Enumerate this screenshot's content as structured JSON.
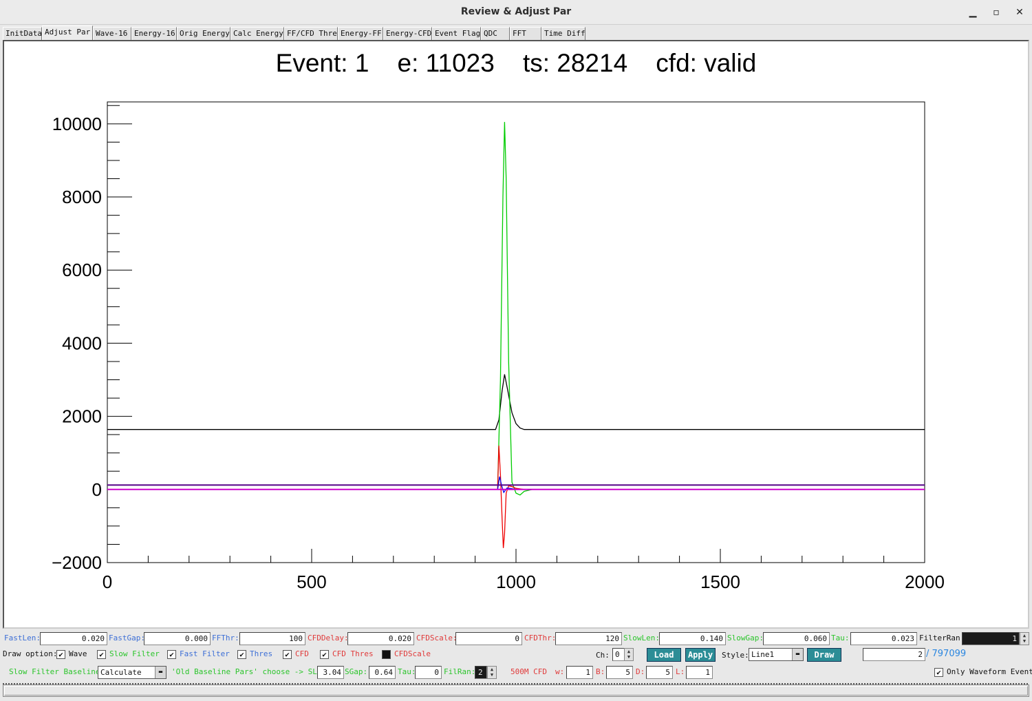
{
  "window": {
    "title": "Review & Adjust Par",
    "minimize": "▁",
    "maximize": "▫",
    "close": "✕"
  },
  "tabs": [
    {
      "label": "InitData",
      "active": false
    },
    {
      "label": "Adjust Par",
      "active": true
    },
    {
      "label": "Wave-16",
      "active": false
    },
    {
      "label": "Energy-16",
      "active": false
    },
    {
      "label": "Orig Energy",
      "active": false
    },
    {
      "label": "Calc Energy",
      "active": false
    },
    {
      "label": "FF/CFD Thre",
      "active": false
    },
    {
      "label": "Energy-FF",
      "active": false
    },
    {
      "label": "Energy-CFD",
      "active": false
    },
    {
      "label": "Event Flag",
      "active": false
    },
    {
      "label": "QDC",
      "active": false
    },
    {
      "label": "FFT",
      "active": false
    },
    {
      "label": "Time Diff",
      "active": false
    }
  ],
  "chart_data": {
    "type": "line",
    "title": "Event: 1    e: 11023    ts: 28214    cfd: valid",
    "xlim": [
      0,
      2000
    ],
    "ylim": [
      -2000,
      10600
    ],
    "xticks": [
      0,
      500,
      1000,
      1500,
      2000
    ],
    "yticks": [
      -2000,
      0,
      2000,
      4000,
      6000,
      8000,
      10000
    ],
    "xtick_labels": [
      "0",
      "500",
      "1000",
      "1500",
      "2000"
    ],
    "ytick_labels": [
      "−2000",
      "0",
      "2000",
      "4000",
      "6000",
      "8000",
      "10000"
    ],
    "grid": false,
    "series": [
      {
        "color": "#000000",
        "x": [
          0,
          950,
          958,
          966,
          972,
          980,
          990,
          1000,
          1010,
          1020,
          1040,
          2000
        ],
        "y": [
          1640,
          1640,
          1900,
          2700,
          3150,
          2700,
          2100,
          1800,
          1680,
          1640,
          1640,
          1640
        ]
      },
      {
        "color": "#00cc00",
        "x": [
          0,
          955,
          962,
          968,
          972,
          976,
          982,
          990,
          1000,
          1010,
          1020,
          1040,
          2000
        ],
        "y": [
          0,
          0,
          3000,
          8000,
          10050,
          8500,
          3500,
          200,
          -100,
          -150,
          -50,
          0,
          0
        ]
      },
      {
        "color": "#ee0000",
        "x": [
          0,
          955,
          958,
          962,
          966,
          969,
          972,
          976,
          982,
          990,
          1000,
          1020,
          2000
        ],
        "y": [
          0,
          0,
          1200,
          400,
          -800,
          -1600,
          -1200,
          -100,
          100,
          80,
          30,
          0,
          0
        ]
      },
      {
        "color": "#0000ee",
        "x": [
          0,
          955,
          960,
          965,
          970,
          978,
          990,
          1000,
          2000
        ],
        "y": [
          0,
          0,
          350,
          100,
          -80,
          40,
          20,
          0,
          0
        ]
      },
      {
        "color": "#cc00cc",
        "x": [
          0,
          2000
        ],
        "y": [
          0,
          0
        ]
      },
      {
        "color": "#550088",
        "x": [
          0,
          2000
        ],
        "y": [
          120,
          120
        ]
      }
    ]
  },
  "controls": {
    "row1": [
      {
        "label": "FastLen:",
        "color": "blue",
        "value": "0.020"
      },
      {
        "label": "FastGap:",
        "color": "blue",
        "value": "0.000"
      },
      {
        "label": "FFThr:",
        "color": "blue",
        "value": "100"
      },
      {
        "label": "CFDDelay:",
        "color": "red",
        "value": "0.020"
      },
      {
        "label": "CFDScale:",
        "color": "red",
        "value": "0"
      },
      {
        "label": "CFDThr:",
        "color": "red",
        "value": "120"
      },
      {
        "label": "SlowLen:",
        "color": "green",
        "value": "0.140"
      },
      {
        "label": "SlowGap:",
        "color": "green",
        "value": "0.060"
      },
      {
        "label": "Tau:",
        "color": "green",
        "value": "0.023"
      },
      {
        "label": "FilterRan:",
        "color": "black",
        "value": "1"
      }
    ],
    "draw_option_label": "Draw option:",
    "draw_options": [
      {
        "label": "Wave",
        "color": "black",
        "checked": true
      },
      {
        "label": "Slow Filter",
        "color": "green",
        "checked": true
      },
      {
        "label": "Fast Filter",
        "color": "blue",
        "checked": true
      },
      {
        "label": "Thres",
        "color": "blue",
        "checked": true
      },
      {
        "label": "CFD",
        "color": "red",
        "checked": true
      },
      {
        "label": "CFD Thres",
        "color": "red",
        "checked": true
      },
      {
        "label": "CFDScale",
        "color": "black",
        "checked": false
      }
    ],
    "ch_label": "Ch:",
    "ch_value": "0",
    "load_label": "Load",
    "apply_label": "Apply",
    "style_label": "Style:",
    "style_value": "Line1",
    "draw_label": "Draw",
    "event_value": "2",
    "event_total": "/ 797099",
    "row3": {
      "baseline_label": "Slow Filter Baseline:",
      "baseline_value": "Calculate",
      "old_pars_label": "'Old Baseline Pars' choose -> SLen:",
      "slen_value": "3.04",
      "sgap_label": "SGap:",
      "sgap_value": "0.64",
      "tau_label": "Tau:",
      "tau_value": "0",
      "filran_label": "FilRan:",
      "filran_value": "2",
      "ram_cfd_label": "500M CFD",
      "w_label": "w:",
      "w_value": "1",
      "b_label": "B:",
      "b_value": "5",
      "d_label": "D:",
      "d_value": "5",
      "l_label": "L:",
      "l_value": "1",
      "only_waveform_label": "Only Waveform Event",
      "only_waveform_checked": true
    }
  }
}
